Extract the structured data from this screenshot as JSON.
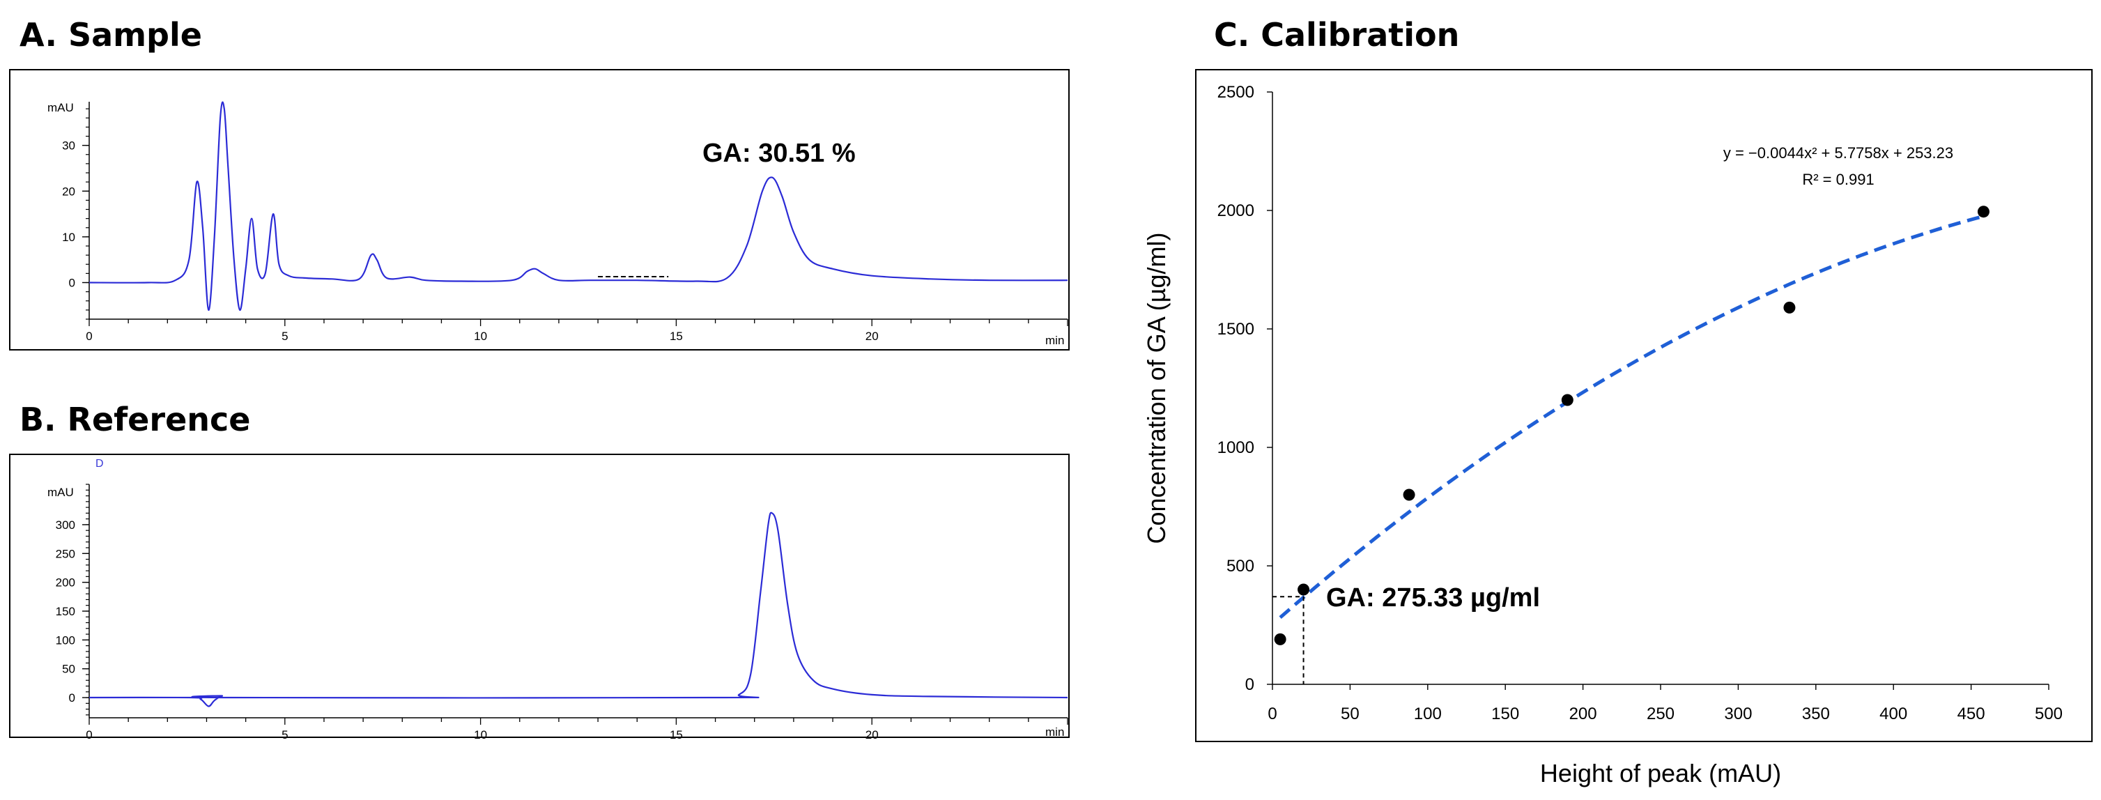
{
  "chart_data": [
    {
      "panel": "A",
      "title": "A. Sample",
      "type": "line",
      "xlabel": "min",
      "ylabel": "mAU",
      "xlim": [
        0,
        25
      ],
      "ylim": [
        -8,
        40
      ],
      "xticks": [
        0,
        5,
        10,
        15,
        20
      ],
      "yticks": [
        0,
        10,
        20,
        30
      ],
      "annotation": "GA: 30.51 %",
      "color": "#2b2bd6",
      "series": [
        {
          "name": "sample chromatogram",
          "x": [
            0,
            1.5,
            2.2,
            2.55,
            2.75,
            2.9,
            3.05,
            3.2,
            3.35,
            3.45,
            3.55,
            3.7,
            3.85,
            4.0,
            4.15,
            4.3,
            4.5,
            4.7,
            4.85,
            5.1,
            5.5,
            6.2,
            6.9,
            7.2,
            7.35,
            7.6,
            8.2,
            8.6,
            9.5,
            10.8,
            11.2,
            11.4,
            11.6,
            12.0,
            12.8,
            14.0,
            15.5,
            16.3,
            16.8,
            17.2,
            17.45,
            17.7,
            18.0,
            18.4,
            19.0,
            20.0,
            21.5,
            23.0,
            25.0
          ],
          "y": [
            0,
            0,
            0.5,
            5,
            22,
            12,
            -6,
            10,
            36,
            38,
            25,
            5,
            -6,
            3,
            14,
            3,
            2,
            15,
            4,
            1.5,
            1,
            0.8,
            0.8,
            6,
            5,
            1,
            1.2,
            0.5,
            0.3,
            0.5,
            2.5,
            3,
            2,
            0.5,
            0.5,
            0.5,
            0.3,
            1,
            8,
            20,
            23,
            19,
            11,
            5,
            3,
            1.5,
            0.8,
            0.5,
            0.5
          ]
        }
      ]
    },
    {
      "panel": "B",
      "title": "B. Reference",
      "type": "line",
      "xlabel": "min",
      "ylabel": "mAU",
      "xlim": [
        0,
        25
      ],
      "ylim": [
        -35,
        370
      ],
      "xticks": [
        0,
        5,
        10,
        15,
        20
      ],
      "yticks": [
        0,
        50,
        100,
        150,
        200,
        250,
        300
      ],
      "marker_label": "D",
      "color": "#2b2bd6",
      "series": [
        {
          "name": "reference chromatogram",
          "x": [
            0,
            2.6,
            2.85,
            3.05,
            3.2,
            3.4,
            3.6,
            16.0,
            16.6,
            16.9,
            17.15,
            17.35,
            17.45,
            17.6,
            17.85,
            18.1,
            18.5,
            19.0,
            20.0,
            21.5,
            25.0
          ],
          "y": [
            0,
            0,
            -3,
            -15,
            -5,
            3,
            0,
            0,
            5,
            40,
            180,
            300,
            320,
            290,
            160,
            75,
            30,
            15,
            5,
            2,
            0
          ]
        }
      ]
    },
    {
      "panel": "C",
      "title": "C. Calibration",
      "type": "scatter",
      "xlabel": "Height of peak (mAU)",
      "ylabel": "Concentration of GA (µg/ml)",
      "xlim": [
        0,
        500
      ],
      "ylim": [
        0,
        2500
      ],
      "xticks": [
        0,
        50,
        100,
        150,
        200,
        250,
        300,
        350,
        400,
        450,
        500
      ],
      "yticks": [
        0,
        500,
        1000,
        1500,
        2000,
        2500
      ],
      "points": [
        {
          "x": 5,
          "y": 190
        },
        {
          "x": 20,
          "y": 400
        },
        {
          "x": 88,
          "y": 800
        },
        {
          "x": 190,
          "y": 1200
        },
        {
          "x": 333,
          "y": 1590
        },
        {
          "x": 458,
          "y": 1995
        }
      ],
      "trendline": {
        "type": "polynomial",
        "coefficients": [
          -0.0044,
          5.7758,
          253.23
        ],
        "x_range": [
          5,
          458
        ],
        "color": "#1f5fd6"
      },
      "equation": "y = −0.0044x² + 5.7758x + 253.23",
      "r_squared": "R² = 0.991",
      "annotation": "GA: 275.33 µg/ml",
      "annotation_point": {
        "x": 20,
        "y": 370
      }
    }
  ]
}
